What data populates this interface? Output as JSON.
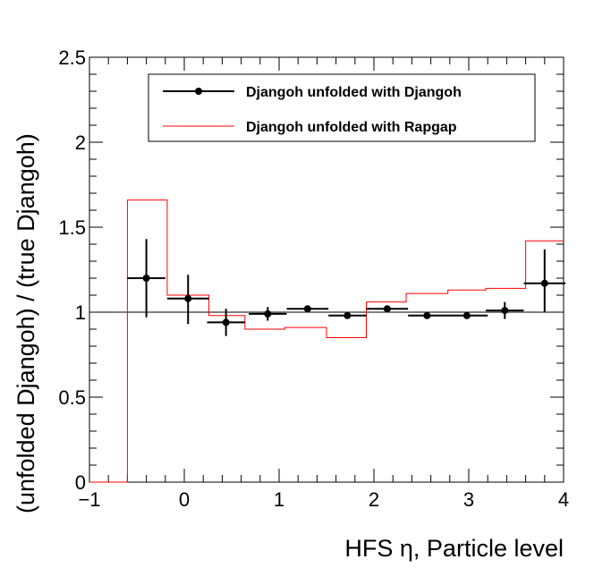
{
  "chart_data": {
    "type": "line",
    "title": "",
    "xlabel": "HFS η, Particle level",
    "ylabel": "(unfolded Djangoh) / (true Djangoh)",
    "xlim": [
      -1,
      4
    ],
    "ylim": [
      0,
      2.5
    ],
    "x_ticks": [
      -1,
      0,
      1,
      2,
      3,
      4
    ],
    "x_tick_labels": [
      "−1",
      "0",
      "1",
      "2",
      "3",
      "4"
    ],
    "y_ticks": [
      0,
      0.5,
      1,
      1.5,
      2,
      2.5
    ],
    "y_tick_labels": [
      "0",
      "0.5",
      "1",
      "1.5",
      "2",
      "2.5"
    ],
    "reference_line": 1,
    "series": [
      {
        "name": "Djangoh unfolded with Djangoh",
        "style": "markers-with-errors",
        "color": "#000000",
        "x": [
          -0.4,
          0.04,
          0.44,
          0.88,
          1.3,
          1.72,
          2.14,
          2.56,
          2.98,
          3.38,
          3.8
        ],
        "xerr": [
          0.2,
          0.22,
          0.2,
          0.2,
          0.22,
          0.2,
          0.22,
          0.2,
          0.22,
          0.2,
          0.22
        ],
        "y": [
          1.2,
          1.08,
          0.94,
          0.99,
          1.02,
          0.98,
          1.02,
          0.98,
          0.98,
          1.01,
          1.17
        ],
        "yerr_low": [
          0.23,
          0.15,
          0.08,
          0.04,
          0.02,
          0.01,
          0.01,
          0.01,
          0.02,
          0.05,
          0.17
        ],
        "yerr_high": [
          0.23,
          0.14,
          0.08,
          0.04,
          0.02,
          0.01,
          0.01,
          0.01,
          0.02,
          0.05,
          0.2
        ]
      },
      {
        "name": "Djangoh unfolded with Rapgap",
        "style": "step",
        "color": "#ff0000",
        "edges": [
          -1,
          -0.6,
          -0.18,
          0.26,
          0.64,
          1.06,
          1.5,
          1.92,
          2.34,
          2.78,
          3.18,
          3.6,
          4.0
        ],
        "values": [
          0.0,
          1.66,
          1.1,
          0.98,
          0.9,
          0.91,
          0.85,
          1.06,
          1.11,
          1.13,
          1.14,
          1.42
        ]
      }
    ],
    "legend": {
      "position": "top-right",
      "entries": [
        "Djangoh unfolded with Djangoh",
        "Djangoh unfolded with Rapgap"
      ]
    }
  }
}
